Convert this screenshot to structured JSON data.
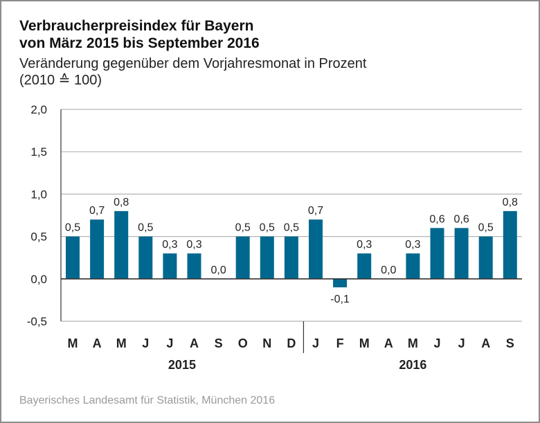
{
  "header": {
    "title_line1": "Verbraucherpreisindex für Bayern",
    "title_line2": "von März 2015 bis September 2016",
    "subtitle_line1": "Veränderung gegenüber dem Vorjahresmonat in Prozent",
    "subtitle_line2": "(2010 ≙ 100)"
  },
  "footer": {
    "source": "Bayerisches Landesamt für Statistik, München 2016"
  },
  "colors": {
    "bar": "#00688f",
    "grid": "#b4b4b4",
    "axis": "#333333"
  },
  "chart_data": {
    "type": "bar",
    "title": "Verbraucherpreisindex für Bayern von März 2015 bis September 2016",
    "ylabel": "Veränderung gegenüber dem Vorjahresmonat in Prozent",
    "xlabel": "",
    "ylim": [
      -0.5,
      2.0
    ],
    "yticks": [
      2.0,
      1.5,
      1.0,
      0.5,
      0.0,
      -0.5
    ],
    "ytick_labels": [
      "2,0",
      "1,5",
      "1,0",
      "0,5",
      "0,0",
      "-0,5"
    ],
    "categories": [
      "M",
      "A",
      "M",
      "J",
      "J",
      "A",
      "S",
      "O",
      "N",
      "D",
      "J",
      "F",
      "M",
      "A",
      "M",
      "J",
      "J",
      "A",
      "S"
    ],
    "values": [
      0.5,
      0.7,
      0.8,
      0.5,
      0.3,
      0.3,
      0.0,
      0.5,
      0.5,
      0.5,
      0.7,
      -0.1,
      0.3,
      0.0,
      0.3,
      0.6,
      0.6,
      0.5,
      0.8
    ],
    "value_labels": [
      "0,5",
      "0,7",
      "0,8",
      "0,5",
      "0,3",
      "0,3",
      "0,0",
      "0,5",
      "0,5",
      "0,5",
      "0,7",
      "-0,1",
      "0,3",
      "0,0",
      "0,3",
      "0,6",
      "0,6",
      "0,5",
      "0,8"
    ],
    "year_groups": [
      {
        "label": "2015",
        "start": 0,
        "end": 9
      },
      {
        "label": "2016",
        "start": 10,
        "end": 18
      }
    ],
    "grid": true,
    "legend": "none"
  }
}
